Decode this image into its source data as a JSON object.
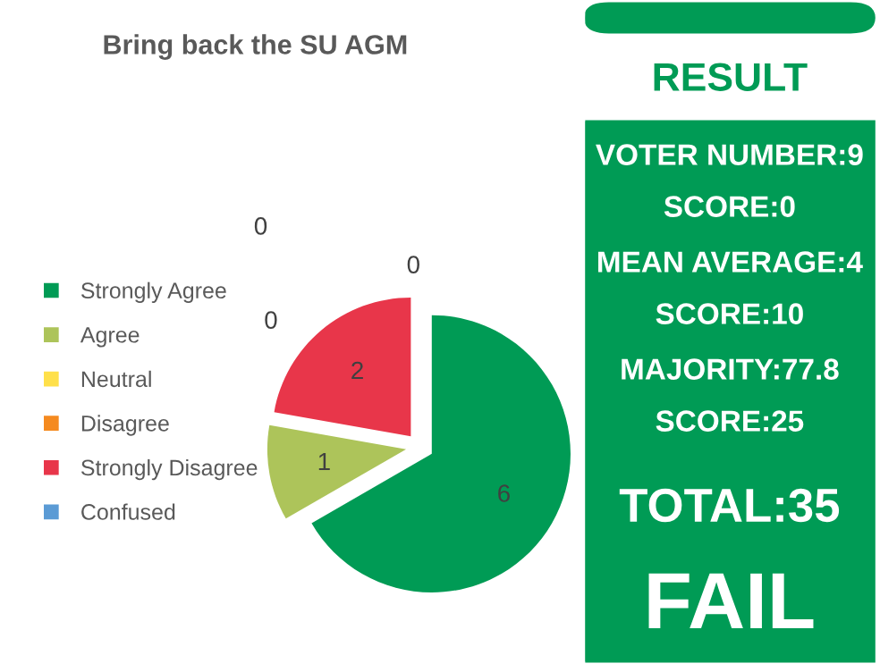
{
  "chart_data": [
    {
      "type": "pie",
      "title": "Bring back the SU AGM",
      "categories": [
        "Strongly Agree",
        "Agree",
        "Neutral",
        "Disagree",
        "Strongly Disagree",
        "Confused"
      ],
      "values": [
        6,
        1,
        0,
        0,
        2,
        0
      ],
      "colors": [
        "#009b55",
        "#adc45a",
        "#ffe04a",
        "#f58a1f",
        "#e8364a",
        "#5b9bd5"
      ],
      "value_labels": [
        "6",
        "1",
        "0",
        "0",
        "2",
        "0"
      ],
      "legend": "left"
    },
    {
      "type": "other",
      "title": "RESULT",
      "annotations": [
        "VOTER NUMBER:9",
        "SCORE:0",
        "MEAN AVERAGE:4",
        "SCORE:10",
        "MAJORITY:77.8",
        "SCORE:25",
        "TOTAL:35",
        "FAIL"
      ]
    }
  ]
}
